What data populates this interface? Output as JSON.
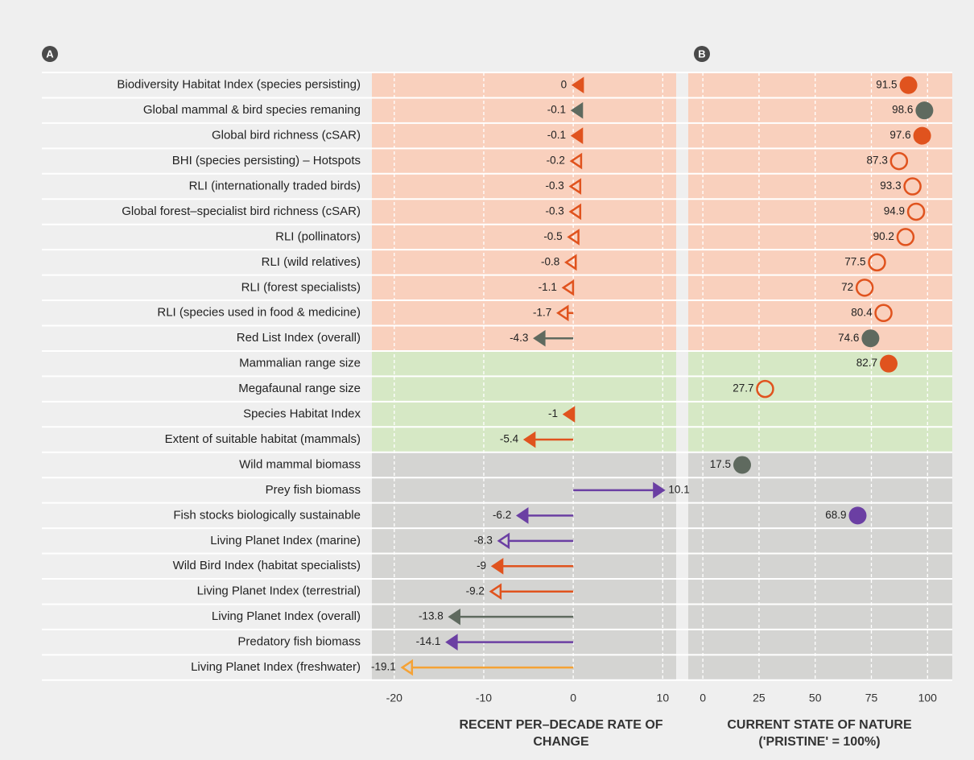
{
  "chart_data": [
    {
      "type": "arrow",
      "panel_label": "A",
      "xlabel": "RECENT PER–DECADE RATE OF CHANGE",
      "categories": [
        "Biodiversity Habitat Index (species persisting)",
        "Global mammal & bird species remaning",
        "Global bird richness (cSAR)",
        "BHI (species persisting) – Hotspots",
        "RLI (internationally traded birds)",
        "Global forest–specialist bird richness (cSAR)",
        "RLI (pollinators)",
        "RLI (wild relatives)",
        "RLI (forest specialists)",
        "RLI (species used in food & medicine)",
        "Red List Index (overall)",
        "Mammalian range size",
        "Megafaunal range size",
        "Species Habitat Index",
        "Extent of suitable habitat (mammals)",
        "Wild mammal biomass",
        "Prey fish biomass",
        "Fish stocks biologically sustainable",
        "Living Planet Index (marine)",
        "Wild Bird Index (habitat specialists)",
        "Living Planet Index (terrestrial)",
        "Living Planet Index (overall)",
        "Predatory fish biomass",
        "Living Planet Index (freshwater)"
      ],
      "row_colors": [
        "#f9d0bd",
        "#f9d0bd",
        "#f9d0bd",
        "#f9d0bd",
        "#f9d0bd",
        "#f9d0bd",
        "#f9d0bd",
        "#f9d0bd",
        "#f9d0bd",
        "#f9d0bd",
        "#f9d0bd",
        "#d6e8c5",
        "#d6e8c5",
        "#d6e8c5",
        "#d6e8c5",
        "#d4d4d2",
        "#d4d4d2",
        "#d4d4d2",
        "#d4d4d2",
        "#d4d4d2",
        "#d4d4d2",
        "#d4d4d2",
        "#d4d4d2",
        "#d4d4d2"
      ],
      "values": [
        0,
        -0.1,
        -0.1,
        -0.2,
        -0.3,
        -0.3,
        -0.5,
        -0.8,
        -1.1,
        -1.7,
        -4.3,
        null,
        null,
        -1,
        -5.4,
        null,
        10.1,
        -6.2,
        -8.3,
        -9,
        -9.2,
        -13.8,
        -14.1,
        -19.1
      ],
      "colors": [
        "#e0531e",
        "#5f6a5f",
        "#e0531e",
        "#e0531e",
        "#e0531e",
        "#e0531e",
        "#e0531e",
        "#e0531e",
        "#e0531e",
        "#e0531e",
        "#5f6a5f",
        null,
        null,
        "#e0531e",
        "#e0531e",
        null,
        "#6b3fa3",
        "#6b3fa3",
        "#6b3fa3",
        "#e0531e",
        "#e0531e",
        "#5f6a5f",
        "#6b3fa3",
        "#f5a235"
      ],
      "filled": [
        true,
        true,
        true,
        false,
        false,
        false,
        false,
        false,
        false,
        false,
        true,
        null,
        null,
        true,
        true,
        null,
        true,
        true,
        false,
        true,
        false,
        true,
        true,
        false
      ],
      "xlim": [
        -22.5,
        11.5
      ],
      "xticks": [
        -20,
        -10,
        0,
        10
      ],
      "grid": true
    },
    {
      "type": "dot",
      "panel_label": "B",
      "xlabel": "CURRENT STATE OF NATURE ('PRISTINE' = 100%)",
      "values": [
        91.5,
        98.6,
        97.6,
        87.3,
        93.3,
        94.9,
        90.2,
        77.5,
        72,
        80.4,
        74.6,
        82.7,
        27.7,
        null,
        null,
        17.5,
        null,
        68.9,
        null,
        null,
        null,
        null,
        null,
        null
      ],
      "colors": [
        "#e0531e",
        "#5f6a5f",
        "#e0531e",
        "#e0531e",
        "#e0531e",
        "#e0531e",
        "#e0531e",
        "#e0531e",
        "#e0531e",
        "#e0531e",
        "#5f6a5f",
        "#e0531e",
        "#e0531e",
        null,
        null,
        "#5f6a5f",
        null,
        "#6b3fa3",
        null,
        null,
        null,
        null,
        null,
        null
      ],
      "filled": [
        true,
        true,
        true,
        false,
        false,
        false,
        false,
        false,
        false,
        false,
        true,
        true,
        false,
        null,
        null,
        true,
        null,
        true,
        null,
        null,
        null,
        null,
        null,
        null
      ],
      "xlim": [
        -6.5,
        111
      ],
      "xticks": [
        0,
        25,
        50,
        75,
        100
      ],
      "grid": true
    }
  ]
}
